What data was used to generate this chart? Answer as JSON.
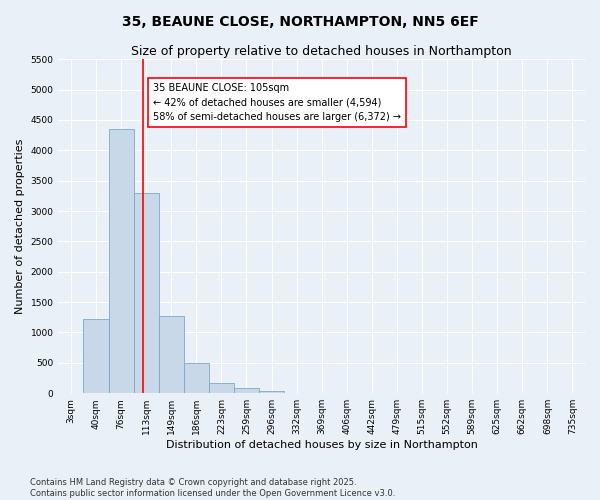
{
  "title": "35, BEAUNE CLOSE, NORTHAMPTON, NN5 6EF",
  "subtitle": "Size of property relative to detached houses in Northampton",
  "xlabel": "Distribution of detached houses by size in Northampton",
  "ylabel": "Number of detached properties",
  "categories": [
    "3sqm",
    "40sqm",
    "76sqm",
    "113sqm",
    "149sqm",
    "186sqm",
    "223sqm",
    "259sqm",
    "296sqm",
    "332sqm",
    "369sqm",
    "406sqm",
    "442sqm",
    "479sqm",
    "515sqm",
    "552sqm",
    "589sqm",
    "625sqm",
    "662sqm",
    "698sqm",
    "735sqm"
  ],
  "values": [
    0,
    1230,
    4350,
    3300,
    1270,
    490,
    175,
    80,
    35,
    5,
    0,
    0,
    0,
    0,
    0,
    0,
    0,
    0,
    0,
    0,
    0
  ],
  "bar_color": "#c8d8e8",
  "bar_edge_color": "#7aaac8",
  "vline_color": "red",
  "vline_pos": 2.89,
  "annotation_text": "35 BEAUNE CLOSE: 105sqm\n← 42% of detached houses are smaller (4,594)\n58% of semi-detached houses are larger (6,372) →",
  "annotation_box_color": "white",
  "annotation_box_edge": "red",
  "ylim": [
    0,
    5500
  ],
  "yticks": [
    0,
    500,
    1000,
    1500,
    2000,
    2500,
    3000,
    3500,
    4000,
    4500,
    5000,
    5500
  ],
  "background_color": "#eaf0f7",
  "plot_background": "#eaf0f7",
  "grid_color": "white",
  "footer_line1": "Contains HM Land Registry data © Crown copyright and database right 2025.",
  "footer_line2": "Contains public sector information licensed under the Open Government Licence v3.0.",
  "title_fontsize": 10,
  "subtitle_fontsize": 9,
  "tick_fontsize": 6.5,
  "ylabel_fontsize": 8,
  "xlabel_fontsize": 8,
  "ann_fontsize": 7,
  "footer_fontsize": 6
}
